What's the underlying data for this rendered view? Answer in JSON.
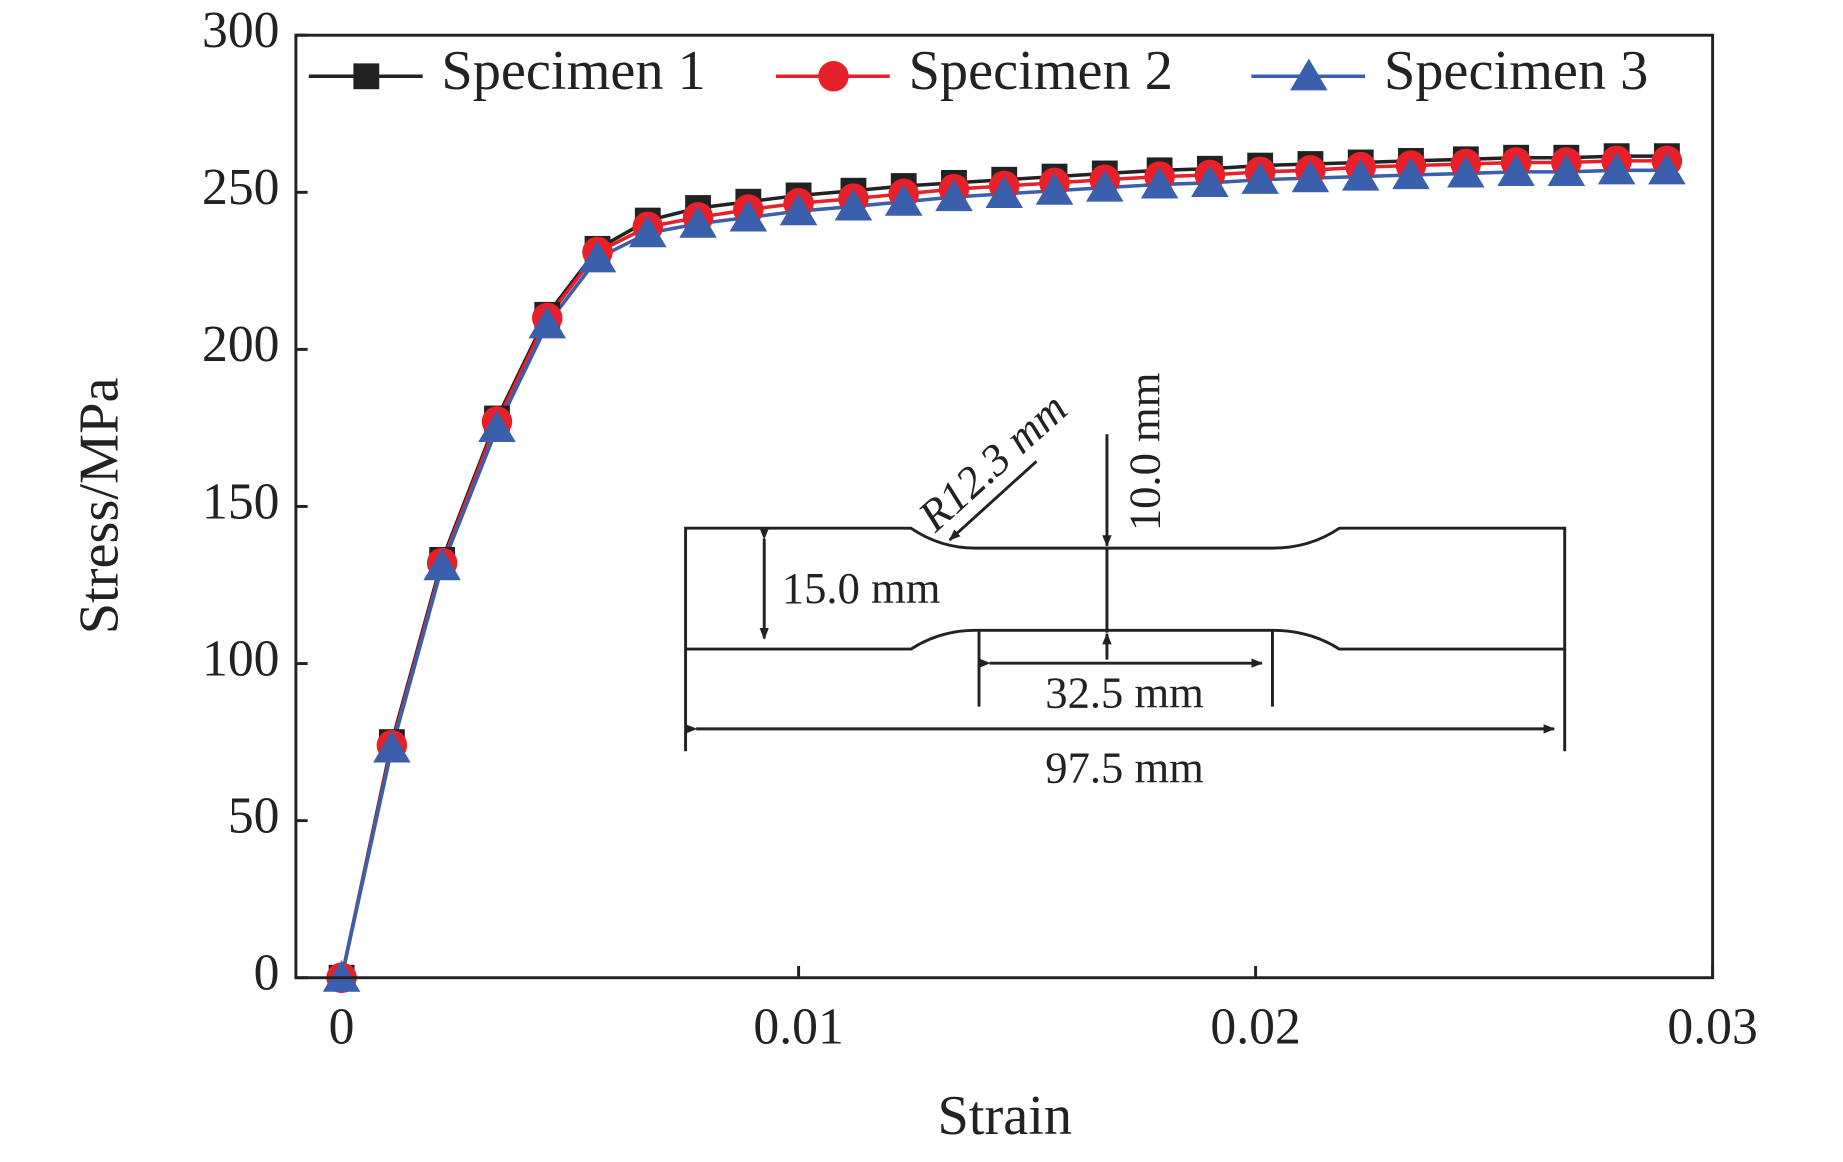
{
  "chart_data": {
    "type": "line",
    "x_label": "Strain",
    "y_label": "Stress/MPa",
    "x": [
      0,
      0.0011,
      0.0022,
      0.0034,
      0.0045,
      0.0056,
      0.0067,
      0.0078,
      0.0089,
      0.01,
      0.0112,
      0.0123,
      0.0134,
      0.0145,
      0.0156,
      0.0167,
      0.0179,
      0.019,
      0.0201,
      0.0212,
      0.0223,
      0.0234,
      0.0246,
      0.0257,
      0.0268,
      0.0279,
      0.029
    ],
    "series": [
      {
        "name": "Specimen 1",
        "color": "#222222",
        "marker": "square",
        "values": [
          0,
          75,
          133,
          178,
          211,
          232,
          241,
          245,
          247,
          249,
          250.5,
          252,
          253,
          254,
          255,
          256,
          257,
          257.5,
          258.5,
          259,
          259.5,
          260,
          260.5,
          261,
          261,
          261.5,
          261.5
        ]
      },
      {
        "name": "Specimen 2",
        "color": "#e8202a",
        "marker": "circle",
        "values": [
          0,
          74,
          132,
          177,
          210,
          231,
          239,
          242,
          244.5,
          246.5,
          248,
          249.5,
          251,
          252,
          253,
          254,
          255,
          255.5,
          256.5,
          257,
          258,
          258.5,
          259,
          259.5,
          259.5,
          260,
          260
        ]
      },
      {
        "name": "Specimen 3",
        "color": "#3a5fad",
        "marker": "triangle",
        "values": [
          0,
          73,
          131,
          175,
          208,
          229,
          237,
          240,
          242,
          244,
          245.5,
          247,
          248.5,
          249.5,
          250.5,
          251.5,
          252.5,
          253,
          254,
          254.5,
          255,
          255.5,
          256,
          256.5,
          256.5,
          257,
          257
        ]
      }
    ],
    "xlim": [
      -0.001,
      0.03
    ],
    "xticks": [
      0,
      0.01,
      0.02,
      0.03
    ],
    "ylim": [
      0,
      300
    ],
    "yticks": [
      0,
      50,
      100,
      150,
      200,
      250,
      300
    ],
    "legend": "top",
    "annotations": [
      "R12.3 mm",
      "10.0 mm",
      "15.0 mm",
      "32.5 mm",
      "97.5 mm"
    ]
  }
}
